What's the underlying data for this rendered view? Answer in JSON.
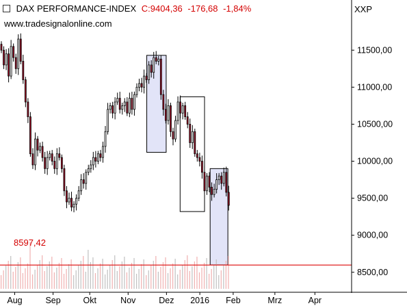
{
  "header": {
    "instrument": "DAX PERFORMANCE-INDEX",
    "quote": {
      "close": "C:9404,36",
      "change": "-176,68",
      "change_pct": "-1,84%"
    },
    "ticker": "XXP",
    "watermark": "www.tradesignalonline.com"
  },
  "reference_line": {
    "value": 8597.42,
    "label": "8597,42",
    "color": "#e02020"
  },
  "colors": {
    "up_candle": "#ffffff",
    "down_candle": "#a01028",
    "outline": "#000000",
    "highlight_box": "#e2e4f8",
    "volume_up": "#c0c0c0",
    "volume_down": "#f0b0b0"
  },
  "chart_data": {
    "type": "candlestick",
    "title": "DAX PERFORMANCE-INDEX",
    "y_axis": {
      "side": "right",
      "ticks": [
        "11500,00",
        "11000,00",
        "10500,00",
        "10000,00",
        "9500,00",
        "9000,00",
        "8500,00"
      ],
      "tick_values": [
        11500,
        11000,
        10500,
        10000,
        9500,
        9000,
        8500
      ],
      "range": [
        8230,
        11900
      ]
    },
    "x_axis": {
      "labels": [
        "Aug",
        "Sep",
        "Okt",
        "Nov",
        "Dez",
        "2016",
        "Feb",
        "Mrz",
        "Apr"
      ],
      "label_index": [
        8,
        31,
        53,
        76,
        99,
        119,
        139,
        164,
        188
      ]
    },
    "highlight_boxes": [
      {
        "from_index": 88,
        "to_index": 98,
        "high": 11430,
        "low": 10120
      },
      {
        "from_index": 108,
        "to_index": 121,
        "high": 10870,
        "low": 9320
      },
      {
        "from_index": 126,
        "to_index": 135,
        "high": 9900,
        "low": 8600
      }
    ],
    "series": [
      {
        "close": [
          11500,
          11300,
          11450,
          11150,
          11550,
          11400,
          11250,
          11650,
          11350,
          11100,
          10800,
          10600,
          10100,
          9950,
          10300,
          10150,
          10200,
          10050,
          9900,
          10050,
          10100,
          10000,
          9900,
          10100,
          10050,
          9900,
          9600,
          9450,
          9500,
          9380,
          9420,
          9500,
          9600,
          9750,
          9700,
          9850,
          9900,
          9950,
          10050,
          10000,
          10100,
          10050,
          10200,
          10400,
          10700,
          10750,
          10650,
          10800,
          10850,
          10700,
          10750,
          10800,
          10650,
          10850,
          10700,
          10900,
          11000,
          11050,
          11000,
          11150,
          11100,
          11300,
          11200,
          11400,
          11350,
          11380,
          10900,
          10700,
          10550,
          10750,
          10400,
          10300,
          10550,
          10800,
          10650,
          10750,
          10600,
          10500,
          10250,
          10400,
          10100,
          10050,
          10000,
          9850,
          9600,
          9800,
          9650,
          9550,
          9620,
          9750,
          9800,
          9700,
          9850,
          9580,
          9404
        ]
      }
    ],
    "volume": {
      "note": "relative volume bars shown beneath price"
    }
  }
}
